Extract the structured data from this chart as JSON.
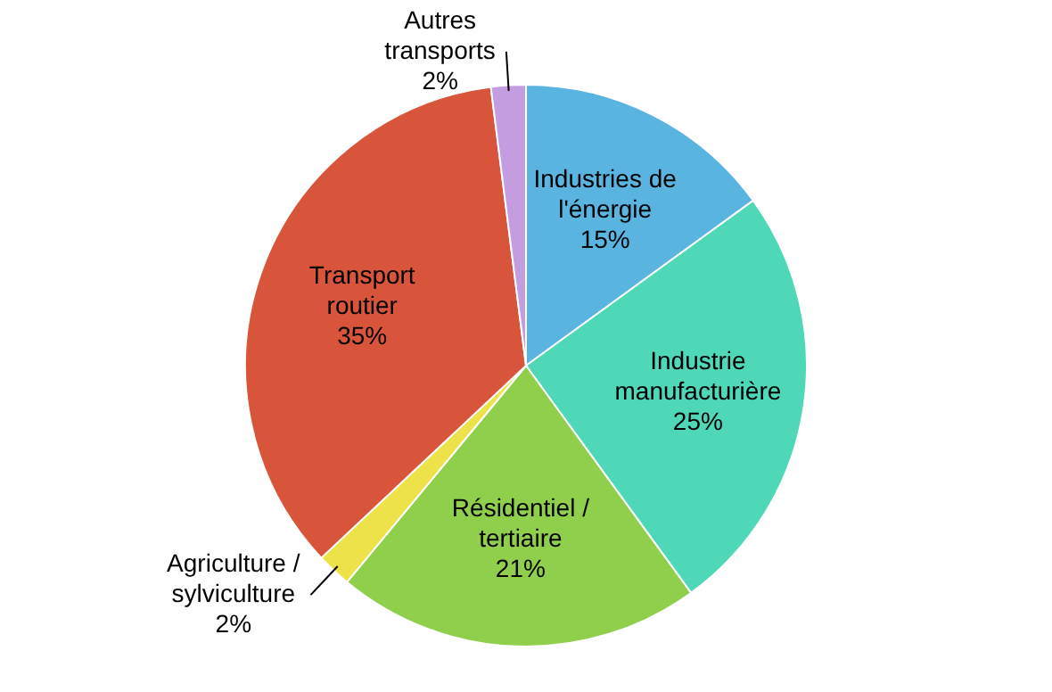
{
  "chart_data": {
    "type": "pie",
    "categories": [
      "Industries de l'énergie",
      "Industrie manufacturière",
      "Résidentiel / tertiaire",
      "Agriculture / sylviculture",
      "Transport routier",
      "Autres transports"
    ],
    "values": [
      15,
      25,
      21,
      2,
      35,
      2
    ],
    "colors": [
      "#5ab4e0",
      "#4fd8b8",
      "#8fcf4c",
      "#eee24a",
      "#d8553c",
      "#c39de0"
    ],
    "value_labels": [
      "15%",
      "25%",
      "21%",
      "2%",
      "35%",
      "2%"
    ],
    "legend": false
  }
}
